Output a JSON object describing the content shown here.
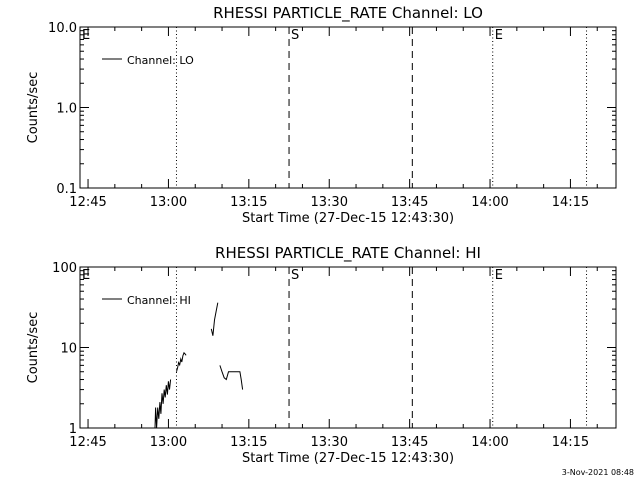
{
  "footer": {
    "timestamp": "3-Nov-2021 08:48"
  },
  "chart_data": [
    {
      "type": "line",
      "title": "RHESSI PARTICLE_RATE Channel: LO",
      "xlabel": "Start Time (27-Dec-15 12:43:30)",
      "ylabel": "Counts/sec",
      "yscale": "log",
      "ylim": [
        0.1,
        10.0
      ],
      "yticks": [
        "0.1",
        "1.0",
        "10.0"
      ],
      "xlim": [
        "12:43:30",
        "14:23:30"
      ],
      "xticks": [
        "12:45",
        "13:00",
        "13:15",
        "13:30",
        "13:45",
        "14:00",
        "14:15"
      ],
      "legend": {
        "position": "top-left",
        "entries": [
          "Channel: LO"
        ]
      },
      "series": [
        {
          "name": "Channel: LO",
          "segments": []
        }
      ],
      "markers": [
        {
          "time": "12:43:30",
          "style": "dotted",
          "label": "E"
        },
        {
          "time": "13:01:30",
          "style": "dotted",
          "label": ""
        },
        {
          "time": "13:22:30",
          "style": "dashed",
          "label": "S"
        },
        {
          "time": "13:45:30",
          "style": "dashed",
          "label": ""
        },
        {
          "time": "14:00:30",
          "style": "dotted",
          "label": "E"
        },
        {
          "time": "14:18:00",
          "style": "dotted",
          "label": ""
        }
      ]
    },
    {
      "type": "line",
      "title": "RHESSI PARTICLE_RATE Channel: HI",
      "xlabel": "Start Time (27-Dec-15 12:43:30)",
      "ylabel": "Counts/sec",
      "yscale": "log",
      "ylim": [
        1,
        100
      ],
      "yticks": [
        "1",
        "10",
        "100"
      ],
      "xlim": [
        "12:43:30",
        "14:23:30"
      ],
      "xticks": [
        "12:45",
        "13:00",
        "13:15",
        "13:30",
        "13:45",
        "14:00",
        "14:15"
      ],
      "legend": {
        "position": "top-left",
        "entries": [
          "Channel: HI"
        ]
      },
      "series": [
        {
          "name": "Channel: HI",
          "segments": [
            [
              [
                "12:57:30",
                1.0
              ],
              [
                "12:57:36",
                1.8
              ],
              [
                "12:57:48",
                1.0
              ],
              [
                "12:58:00",
                1.8
              ],
              [
                "12:58:12",
                1.3
              ],
              [
                "12:58:24",
                2.1
              ],
              [
                "12:58:36",
                1.5
              ],
              [
                "12:58:48",
                2.7
              ],
              [
                "12:59:00",
                2.0
              ],
              [
                "12:59:12",
                3.0
              ],
              [
                "12:59:24",
                2.4
              ],
              [
                "12:59:36",
                3.4
              ],
              [
                "12:59:48",
                2.6
              ],
              [
                "13:00:00",
                3.8
              ],
              [
                "13:00:12",
                3.0
              ],
              [
                "13:00:24",
                4.0
              ]
            ],
            [
              [
                "13:01:30",
                5.0
              ],
              [
                "13:01:42",
                5.6
              ],
              [
                "13:01:54",
                6.5
              ],
              [
                "13:02:06",
                6.1
              ],
              [
                "13:02:18",
                7.2
              ],
              [
                "13:02:30",
                6.6
              ],
              [
                "13:02:42",
                7.9
              ],
              [
                "13:02:54",
                8.6
              ],
              [
                "13:03:06",
                8.3
              ],
              [
                "13:03:18",
                8.0
              ]
            ],
            [
              [
                "13:08:00",
                17.0
              ],
              [
                "13:08:18",
                14.0
              ],
              [
                "13:08:36",
                22.0
              ],
              [
                "13:08:54",
                28.0
              ],
              [
                "13:09:12",
                36.0
              ]
            ],
            [
              [
                "13:09:36",
                6.0
              ],
              [
                "13:10:00",
                5.0
              ],
              [
                "13:10:24",
                4.2
              ],
              [
                "13:10:48",
                4.0
              ],
              [
                "13:11:12",
                5.0
              ],
              [
                "13:12:00",
                5.0
              ],
              [
                "13:12:48",
                5.0
              ],
              [
                "13:13:20",
                5.0
              ],
              [
                "13:13:35",
                4.0
              ],
              [
                "13:13:50",
                3.0
              ]
            ]
          ]
        }
      ],
      "markers": [
        {
          "time": "12:43:30",
          "style": "dotted",
          "label": "E"
        },
        {
          "time": "13:01:30",
          "style": "dotted",
          "label": ""
        },
        {
          "time": "13:22:30",
          "style": "dashed",
          "label": "S"
        },
        {
          "time": "13:45:30",
          "style": "dashed",
          "label": ""
        },
        {
          "time": "14:00:30",
          "style": "dotted",
          "label": "E"
        },
        {
          "time": "14:18:00",
          "style": "dotted",
          "label": ""
        }
      ]
    }
  ]
}
